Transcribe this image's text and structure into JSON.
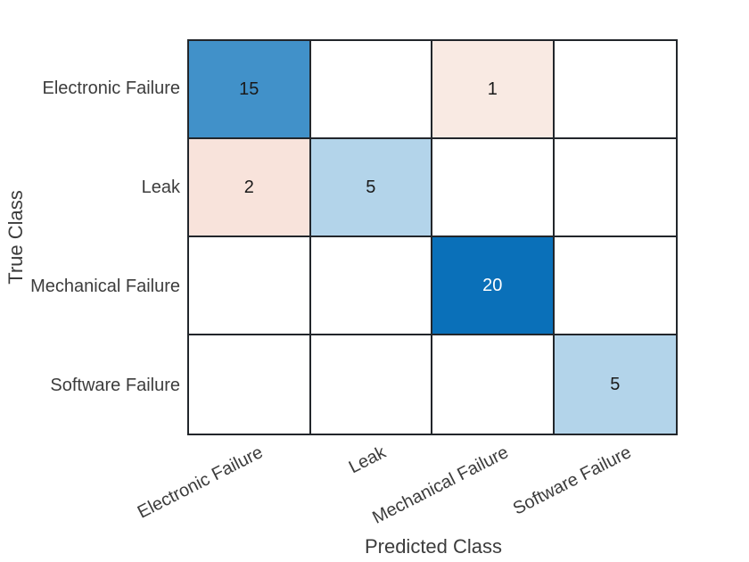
{
  "chart_data": {
    "type": "heatmap",
    "subtype": "confusion-matrix",
    "title": "",
    "xlabel": "Predicted Class",
    "ylabel": "True Class",
    "x_categories": [
      "Electronic Failure",
      "Leak",
      "Mechanical Failure",
      "Software Failure"
    ],
    "y_categories": [
      "Electronic Failure",
      "Leak",
      "Mechanical Failure",
      "Software Failure"
    ],
    "matrix": [
      [
        15,
        null,
        1,
        null
      ],
      [
        2,
        5,
        null,
        null
      ],
      [
        null,
        null,
        20,
        null
      ],
      [
        null,
        null,
        null,
        5
      ]
    ],
    "cells": [
      {
        "row": 0,
        "col": 0,
        "value": "15",
        "bg": "#4191C9",
        "fg": "#1a1a1a"
      },
      {
        "row": 0,
        "col": 2,
        "value": "1",
        "bg": "#F9EAE3",
        "fg": "#1a1a1a"
      },
      {
        "row": 1,
        "col": 0,
        "value": "2",
        "bg": "#F8E3DB",
        "fg": "#1a1a1a"
      },
      {
        "row": 1,
        "col": 1,
        "value": "5",
        "bg": "#B3D4EA",
        "fg": "#1a1a1a"
      },
      {
        "row": 2,
        "col": 2,
        "value": "20",
        "bg": "#0A70B9",
        "fg": "#ffffff"
      },
      {
        "row": 3,
        "col": 3,
        "value": "5",
        "bg": "#B3D4EA",
        "fg": "#1a1a1a"
      }
    ],
    "empty_cell_bg": "#ffffff",
    "grid_line_color": "#22262b",
    "axis_text_color": "#3c3c3c",
    "x_tick_rotation_deg": -27,
    "legend": "none",
    "grid": "on"
  }
}
